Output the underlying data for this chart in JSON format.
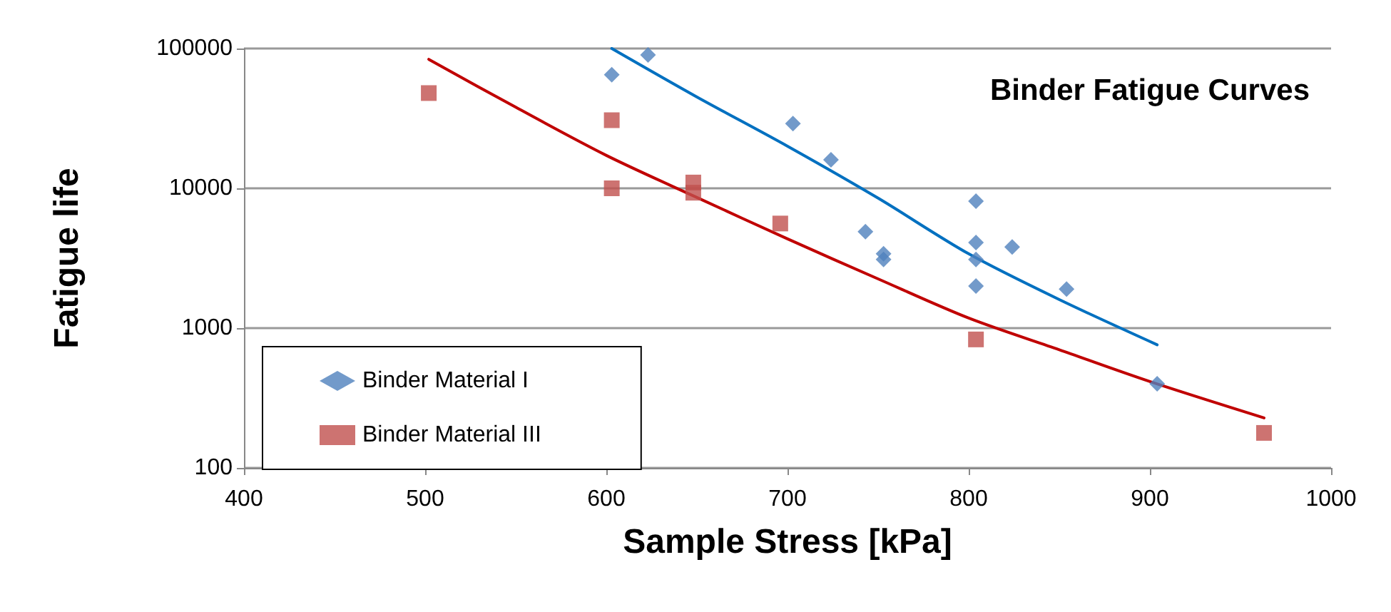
{
  "chart_data": {
    "type": "scatter",
    "title": "Binder Fatigue Curves",
    "xlabel": "Sample Stress [kPa]",
    "ylabel": "Fatigue life",
    "xlim": [
      400,
      1000
    ],
    "xticks": [
      400,
      500,
      600,
      700,
      800,
      900,
      1000
    ],
    "ylim": [
      100,
      100000
    ],
    "yticks": [
      100,
      1000,
      10000,
      100000
    ],
    "log": "y",
    "grid": "y",
    "legend": "bottom left",
    "series": [
      {
        "name": "Binder Material I",
        "color": "#4f81bd",
        "marker": "diamond",
        "x": [
          603,
          623,
          703,
          724,
          743,
          753,
          753,
          804,
          804,
          804,
          804,
          824,
          854,
          904
        ],
        "values": [
          65000,
          90000,
          29000,
          16000,
          4900,
          3400,
          3100,
          8100,
          4100,
          3100,
          2000,
          3800,
          1900,
          400
        ]
      },
      {
        "name": "Binder Material III",
        "color": "#c0504d",
        "marker": "square",
        "x": [
          502,
          603,
          603,
          648,
          648,
          696,
          804,
          963
        ],
        "values": [
          48000,
          30700,
          10000,
          11000,
          9300,
          5600,
          830,
          178
        ]
      },
      {
        "type": "line",
        "color": "#0070c0",
        "marker": "none",
        "x": [
          603,
          650,
          700,
          750,
          800,
          850,
          904
        ],
        "values": [
          100000,
          45000,
          20000,
          8500,
          3400,
          1600,
          760
        ]
      },
      {
        "type": "line",
        "color": "#c00000",
        "marker": "none",
        "x": [
          502,
          550,
          600,
          650,
          700,
          750,
          800,
          850,
          900,
          963
        ],
        "values": [
          83700,
          38000,
          17200,
          8600,
          4350,
          2250,
          1180,
          700,
          415,
          228
        ]
      }
    ]
  }
}
